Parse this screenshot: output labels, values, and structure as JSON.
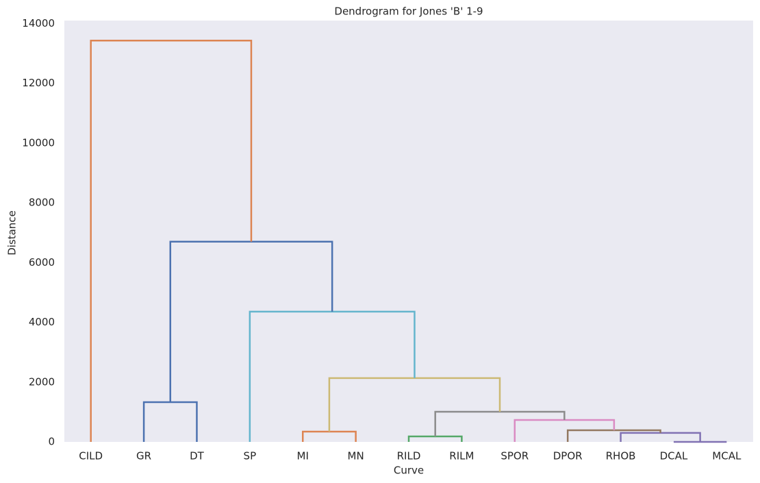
{
  "chart_data": {
    "type": "dendrogram",
    "title": "Dendrogram for Jones 'B' 1-9",
    "xlabel": "Curve",
    "ylabel": "Distance",
    "categories": [
      "CILD",
      "GR",
      "DT",
      "SP",
      "MI",
      "MN",
      "RILD",
      "RILM",
      "SPOR",
      "DPOR",
      "RHOB",
      "DCAL",
      "MCAL"
    ],
    "links": [
      {
        "children": [
          11,
          12
        ],
        "height": 0,
        "color": "#8172b3"
      },
      {
        "children": [
          6,
          7
        ],
        "height": 184,
        "color": "#55a868"
      },
      {
        "children": [
          10,
          13
        ],
        "height": 300,
        "color": "#8172b3"
      },
      {
        "children": [
          4,
          5
        ],
        "height": 345,
        "color": "#dd8452"
      },
      {
        "children": [
          9,
          15
        ],
        "height": 390,
        "color": "#937860"
      },
      {
        "children": [
          8,
          17
        ],
        "height": 735,
        "color": "#da8bc3"
      },
      {
        "children": [
          14,
          18
        ],
        "height": 1010,
        "color": "#8c8c8c"
      },
      {
        "children": [
          1,
          2
        ],
        "height": 1330,
        "color": "#4c72b0"
      },
      {
        "children": [
          16,
          19
        ],
        "height": 2135,
        "color": "#ccb974"
      },
      {
        "children": [
          3,
          21
        ],
        "height": 4360,
        "color": "#64b5cd"
      },
      {
        "children": [
          20,
          22
        ],
        "height": 6700,
        "color": "#4c72b0"
      },
      {
        "children": [
          0,
          23
        ],
        "height": 13430,
        "color": "#dd8452"
      }
    ],
    "ylim": [
      0,
      14100
    ],
    "yticks": [
      0,
      2000,
      4000,
      6000,
      8000,
      10000,
      12000,
      14000
    ],
    "grid": false
  }
}
